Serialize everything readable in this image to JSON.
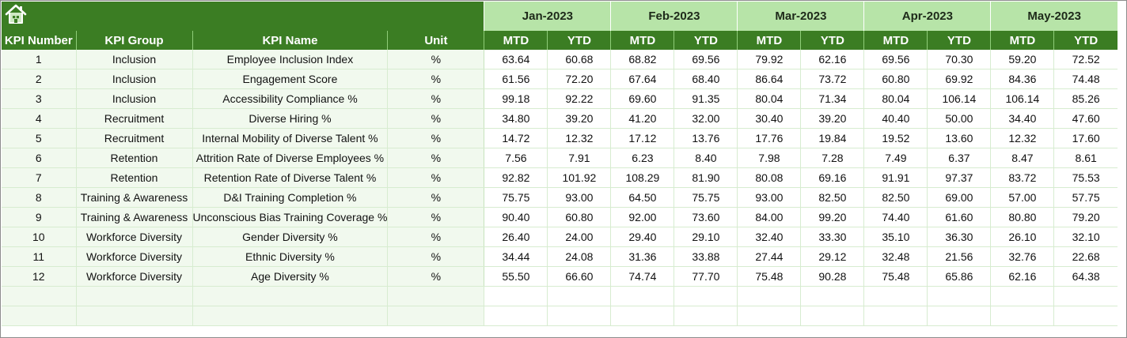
{
  "months": [
    "Jan-2023",
    "Feb-2023",
    "Mar-2023",
    "Apr-2023",
    "May-2023"
  ],
  "columns": {
    "kpi_number": "KPI Number",
    "kpi_group": "KPI Group",
    "kpi_name": "KPI Name",
    "unit": "Unit",
    "mtd": "MTD",
    "ytd": "YTD"
  },
  "icons": {
    "home": "home-icon"
  },
  "colors": {
    "header_green": "#3b7d23",
    "month_green": "#b7e4a8",
    "row_left_bg": "#f1f9ee"
  },
  "rows": [
    {
      "num": "1",
      "group": "Inclusion",
      "name": "Employee Inclusion Index",
      "unit": "%",
      "values": [
        "63.64",
        "60.68",
        "68.82",
        "69.56",
        "79.92",
        "62.16",
        "69.56",
        "70.30",
        "59.20",
        "72.52"
      ]
    },
    {
      "num": "2",
      "group": "Inclusion",
      "name": "Engagement Score",
      "unit": "%",
      "values": [
        "61.56",
        "72.20",
        "67.64",
        "68.40",
        "86.64",
        "73.72",
        "60.80",
        "69.92",
        "84.36",
        "74.48"
      ]
    },
    {
      "num": "3",
      "group": "Inclusion",
      "name": "Accessibility Compliance %",
      "unit": "%",
      "values": [
        "99.18",
        "92.22",
        "69.60",
        "91.35",
        "80.04",
        "71.34",
        "80.04",
        "106.14",
        "106.14",
        "85.26"
      ]
    },
    {
      "num": "4",
      "group": "Recruitment",
      "name": "Diverse Hiring %",
      "unit": "%",
      "values": [
        "34.80",
        "39.20",
        "41.20",
        "32.00",
        "30.40",
        "39.20",
        "40.40",
        "50.00",
        "34.40",
        "47.60"
      ]
    },
    {
      "num": "5",
      "group": "Recruitment",
      "name": "Internal Mobility of Diverse Talent %",
      "unit": "%",
      "values": [
        "14.72",
        "12.32",
        "17.12",
        "13.76",
        "17.76",
        "19.84",
        "19.52",
        "13.60",
        "12.32",
        "17.60"
      ]
    },
    {
      "num": "6",
      "group": "Retention",
      "name": "Attrition Rate of Diverse Employees %",
      "unit": "%",
      "values": [
        "7.56",
        "7.91",
        "6.23",
        "8.40",
        "7.98",
        "7.28",
        "7.49",
        "6.37",
        "8.47",
        "8.61"
      ]
    },
    {
      "num": "7",
      "group": "Retention",
      "name": "Retention Rate of Diverse Talent %",
      "unit": "%",
      "values": [
        "92.82",
        "101.92",
        "108.29",
        "81.90",
        "80.08",
        "69.16",
        "91.91",
        "97.37",
        "83.72",
        "75.53"
      ]
    },
    {
      "num": "8",
      "group": "Training & Awareness",
      "name": "D&I Training Completion %",
      "unit": "%",
      "values": [
        "75.75",
        "93.00",
        "64.50",
        "75.75",
        "93.00",
        "82.50",
        "82.50",
        "69.00",
        "57.00",
        "57.75"
      ]
    },
    {
      "num": "9",
      "group": "Training & Awareness",
      "name": "Unconscious Bias Training Coverage %",
      "unit": "%",
      "values": [
        "90.40",
        "60.80",
        "92.00",
        "73.60",
        "84.00",
        "99.20",
        "74.40",
        "61.60",
        "80.80",
        "79.20"
      ]
    },
    {
      "num": "10",
      "group": "Workforce Diversity",
      "name": "Gender Diversity %",
      "unit": "%",
      "values": [
        "26.40",
        "24.00",
        "29.40",
        "29.10",
        "32.40",
        "33.30",
        "35.10",
        "36.30",
        "26.10",
        "32.10"
      ]
    },
    {
      "num": "11",
      "group": "Workforce Diversity",
      "name": "Ethnic Diversity %",
      "unit": "%",
      "values": [
        "34.44",
        "24.08",
        "31.36",
        "33.88",
        "27.44",
        "29.12",
        "32.48",
        "21.56",
        "32.76",
        "22.68"
      ]
    },
    {
      "num": "12",
      "group": "Workforce Diversity",
      "name": "Age Diversity %",
      "unit": "%",
      "values": [
        "55.50",
        "66.60",
        "74.74",
        "77.70",
        "75.48",
        "90.28",
        "75.48",
        "65.86",
        "62.16",
        "64.38"
      ]
    }
  ]
}
